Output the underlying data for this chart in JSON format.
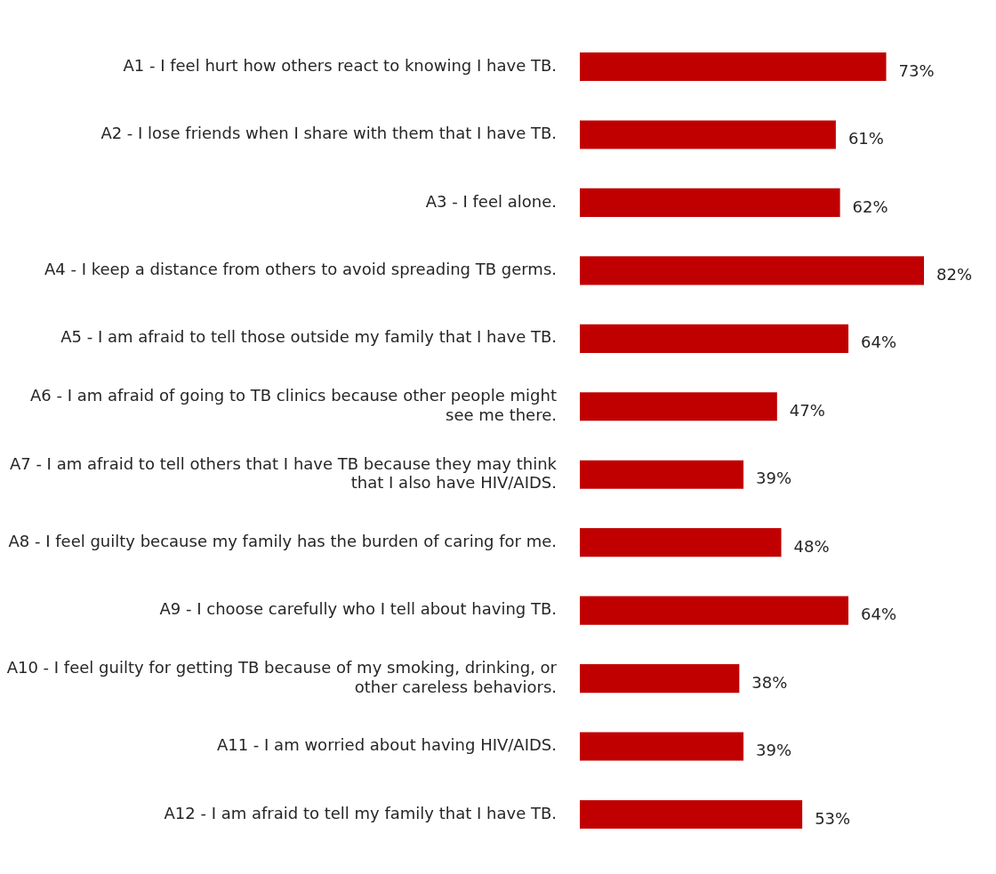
{
  "chart_data": {
    "type": "bar",
    "orientation": "horizontal",
    "categories": [
      "A1 - I feel hurt how others react to knowing I have TB.",
      "A2 - I lose friends when I share with them that I have TB.",
      "A3 - I feel alone.",
      "A4 - I keep a distance from others to avoid spreading TB germs.",
      "A5 - I am afraid to tell those outside my family that I have TB.",
      "A6 - I am afraid of going to TB clinics because other people might see me there.",
      "A7 - I am afraid to tell others that I have TB because they may think that I also have HIV/AIDS.",
      "A8 - I feel guilty because my family has the burden of caring for me.",
      "A9 - I choose carefully who I tell about having TB.",
      "A10 - I feel guilty for getting TB because of my smoking, drinking, or other careless behaviors.",
      "A11 - I am worried about having HIV/AIDS.",
      "A12 - I am afraid to tell my family that I have TB."
    ],
    "values": [
      73,
      61,
      62,
      82,
      64,
      47,
      39,
      48,
      64,
      38,
      39,
      53
    ],
    "value_labels": [
      "73%",
      "61%",
      "62%",
      "82%",
      "64%",
      "47%",
      "39%",
      "48%",
      "64%",
      "38%",
      "39%",
      "53%"
    ],
    "color": "#c00000",
    "legend": false
  }
}
